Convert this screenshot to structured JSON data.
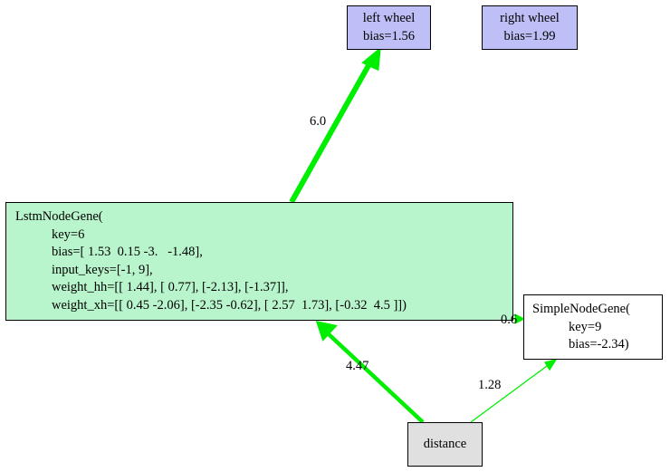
{
  "colors": {
    "output_fill": "#bfbff7",
    "lstm_fill": "#b8f5cc",
    "simple_fill": "#ffffff",
    "input_fill": "#e0e0e0",
    "edge": "#00ee00"
  },
  "nodes": {
    "left_wheel": {
      "lines": [
        "left wheel",
        "bias=1.56"
      ]
    },
    "right_wheel": {
      "lines": [
        "right wheel",
        "bias=1.99"
      ]
    },
    "lstm": {
      "lines": [
        "LstmNodeGene(",
        "key=6",
        "bias=[ 1.53  0.15 -3.   -1.48],",
        "input_keys=[-1, 9],",
        "weight_hh=[[ 1.44], [ 0.77], [-2.13], [-1.37]],",
        "weight_xh=[[ 0.45 -2.06], [-2.35 -0.62], [ 2.57  1.73], [-0.32  4.5 ]])"
      ]
    },
    "simple": {
      "lines": [
        "SimpleNodeGene(",
        "key=9",
        "bias=-2.34)"
      ]
    },
    "distance": {
      "lines": [
        "distance"
      ]
    }
  },
  "edges": {
    "lstm_to_left_wheel": {
      "weight": 6.0,
      "label": "6.0"
    },
    "lstm_to_simple": {
      "weight": 0.6,
      "label": "0.6"
    },
    "distance_to_lstm": {
      "weight": 4.47,
      "label": "4.47"
    },
    "distance_to_simple": {
      "weight": 1.28,
      "label": "1.28"
    }
  }
}
